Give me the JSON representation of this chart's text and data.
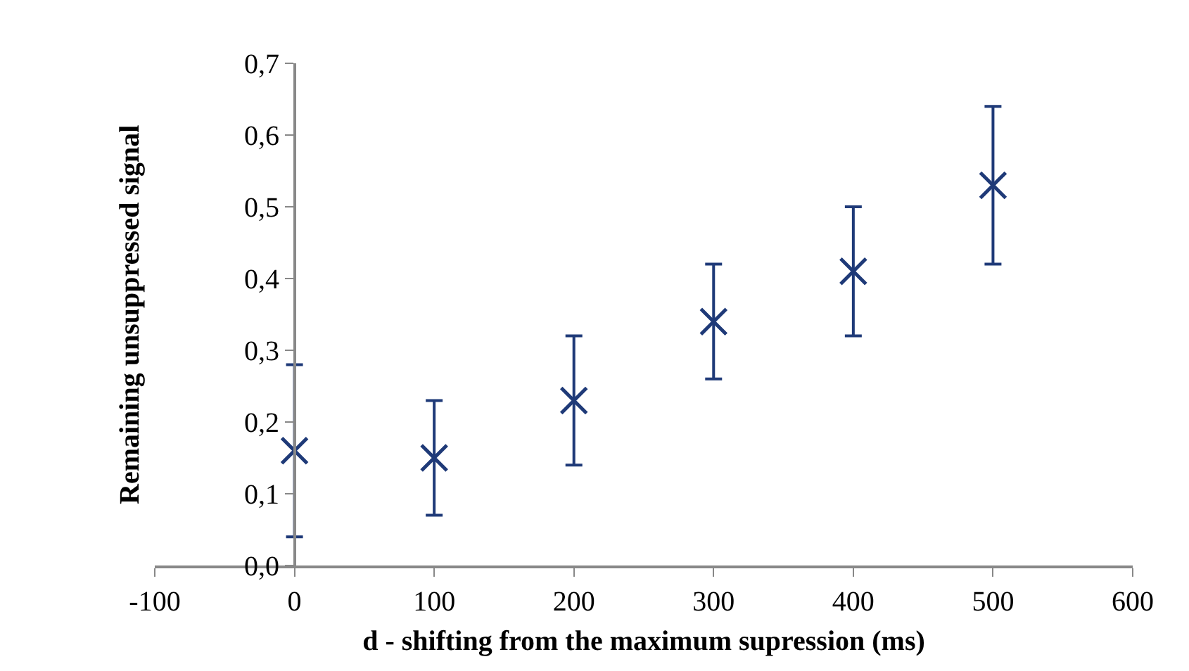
{
  "chart_data": {
    "type": "scatter",
    "xlabel": "d - shifting from the maximum supression (ms)",
    "ylabel": "Remaining unsuppressed signal",
    "x": [
      0,
      100,
      200,
      300,
      400,
      500
    ],
    "series": [
      {
        "color": "#1f3a78",
        "values": [
          0.16,
          0.15,
          0.23,
          0.34,
          0.41,
          0.53
        ],
        "errors": [
          [
            0.04,
            0.28
          ],
          [
            0.07,
            0.23
          ],
          [
            0.14,
            0.32
          ],
          [
            0.26,
            0.42
          ],
          [
            0.32,
            0.5
          ],
          [
            0.42,
            0.64
          ]
        ]
      }
    ],
    "xlim": [
      -100,
      600
    ],
    "xticks": [
      -100,
      0,
      100,
      200,
      300,
      400,
      500,
      600
    ],
    "ylim": [
      0,
      0.7
    ],
    "yticks": [
      {
        "value": 0,
        "label": "0,0"
      },
      {
        "value": 0.1,
        "label": "0,1"
      },
      {
        "value": 0.2,
        "label": "0,2"
      },
      {
        "value": 0.3,
        "label": "0,3"
      },
      {
        "value": 0.4,
        "label": "0,4"
      },
      {
        "value": 0.5,
        "label": "0,5"
      },
      {
        "value": 0.6,
        "label": "0,6"
      },
      {
        "value": 0.7,
        "label": "0,7"
      }
    ],
    "grid": false,
    "legend": false,
    "marker": "cross"
  }
}
